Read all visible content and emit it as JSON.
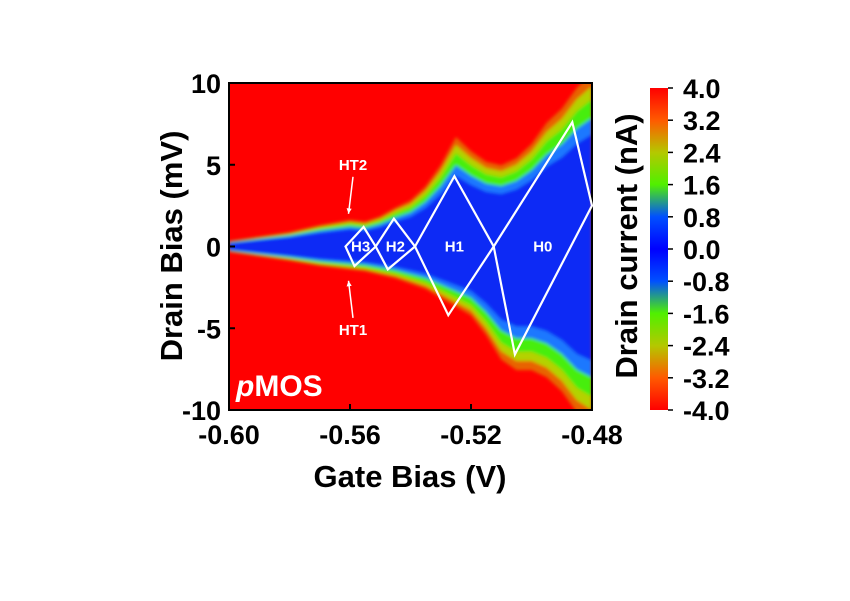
{
  "chart_data": {
    "type": "heatmap",
    "title": "",
    "xlabel": "Gate Bias (V)",
    "ylabel": "Drain Bias (mV)",
    "colorbar_label": "Drain current (nA)",
    "xlim": [
      -0.6,
      -0.48
    ],
    "ylim": [
      -10,
      10
    ],
    "x_ticks": [
      -0.6,
      -0.56,
      -0.52,
      -0.48
    ],
    "x_tick_labels": [
      "-0.60",
      "-0.56",
      "-0.52",
      "-0.48"
    ],
    "y_ticks": [
      10,
      5,
      0,
      -5,
      -10
    ],
    "y_tick_labels": [
      "10",
      "5",
      "0",
      "-5",
      "-10"
    ],
    "colorbar_range": [
      -4.0,
      4.0
    ],
    "colorbar_ticks": [
      4.0,
      3.2,
      2.4,
      1.6,
      0.8,
      0.0,
      -0.8,
      -1.6,
      -2.4,
      -3.2,
      -4.0
    ],
    "colorbar_tick_labels": [
      "4.0",
      "3.2",
      "2.4",
      "1.6",
      "0.8",
      "0.0",
      "-0.8",
      "-1.6",
      "-2.4",
      "-3.2",
      "-4.0"
    ],
    "colorbar_colors": [
      "#ff0000",
      "#ff5a00",
      "#b4c800",
      "#50f000",
      "#0050ff",
      "#0000ff",
      "#0050ff",
      "#50f000",
      "#b4c800",
      "#ff5a00",
      "#ff0000"
    ],
    "blockade_edge_upper": [
      [
        -0.6,
        0.3
      ],
      [
        -0.58,
        0.8
      ],
      [
        -0.57,
        1.2
      ],
      [
        -0.56,
        1.5
      ],
      [
        -0.555,
        1.4
      ],
      [
        -0.55,
        1.7
      ],
      [
        -0.545,
        2.2
      ],
      [
        -0.54,
        2.6
      ],
      [
        -0.535,
        3.4
      ],
      [
        -0.53,
        4.6
      ],
      [
        -0.525,
        6.2
      ],
      [
        -0.52,
        5.4
      ],
      [
        -0.515,
        4.8
      ],
      [
        -0.51,
        4.6
      ],
      [
        -0.505,
        5.0
      ],
      [
        -0.5,
        5.8
      ],
      [
        -0.495,
        7.0
      ],
      [
        -0.49,
        7.8
      ],
      [
        -0.485,
        9.0
      ],
      [
        -0.48,
        9.8
      ]
    ],
    "blockade_edge_lower": [
      [
        -0.6,
        -0.3
      ],
      [
        -0.58,
        -0.8
      ],
      [
        -0.57,
        -1.1
      ],
      [
        -0.56,
        -1.3
      ],
      [
        -0.555,
        -1.4
      ],
      [
        -0.55,
        -1.6
      ],
      [
        -0.545,
        -1.8
      ],
      [
        -0.54,
        -2.1
      ],
      [
        -0.535,
        -2.4
      ],
      [
        -0.53,
        -2.9
      ],
      [
        -0.525,
        -3.4
      ],
      [
        -0.52,
        -3.9
      ],
      [
        -0.515,
        -5.0
      ],
      [
        -0.51,
        -6.4
      ],
      [
        -0.505,
        -7.0
      ],
      [
        -0.5,
        -7.0
      ],
      [
        -0.495,
        -7.4
      ],
      [
        -0.49,
        -8.2
      ],
      [
        -0.485,
        -9.4
      ],
      [
        -0.48,
        -10.0
      ]
    ],
    "diamonds": [
      {
        "label": "H3",
        "left": [
          -0.5615,
          0
        ],
        "top": [
          -0.5555,
          1.2
        ],
        "right": [
          -0.5515,
          0
        ],
        "bottom": [
          -0.5585,
          -1.2
        ]
      },
      {
        "label": "H2",
        "left": [
          -0.5515,
          0
        ],
        "top": [
          -0.5455,
          1.7
        ],
        "right": [
          -0.5385,
          0
        ],
        "bottom": [
          -0.5475,
          -1.4
        ]
      },
      {
        "label": "H1",
        "left": [
          -0.5385,
          0
        ],
        "top": [
          -0.5255,
          4.3
        ],
        "right": [
          -0.5125,
          0
        ],
        "bottom": [
          -0.5275,
          -4.2
        ]
      },
      {
        "label": "H0",
        "left": [
          -0.5125,
          0
        ],
        "top": [
          -0.4865,
          7.6
        ],
        "right": [
          -0.48,
          2.5
        ],
        "bottom": [
          -0.5055,
          -6.6
        ]
      }
    ],
    "annotations": [
      {
        "label": "HT2",
        "text_at": [
          -0.559,
          5.0
        ],
        "arrow_to": [
          -0.5605,
          2.0
        ]
      },
      {
        "label": "HT1",
        "text_at": [
          -0.559,
          -5.1
        ],
        "arrow_to": [
          -0.5605,
          -2.1
        ]
      }
    ],
    "panel_label": {
      "prefix": "p",
      "text": "MOS"
    }
  }
}
